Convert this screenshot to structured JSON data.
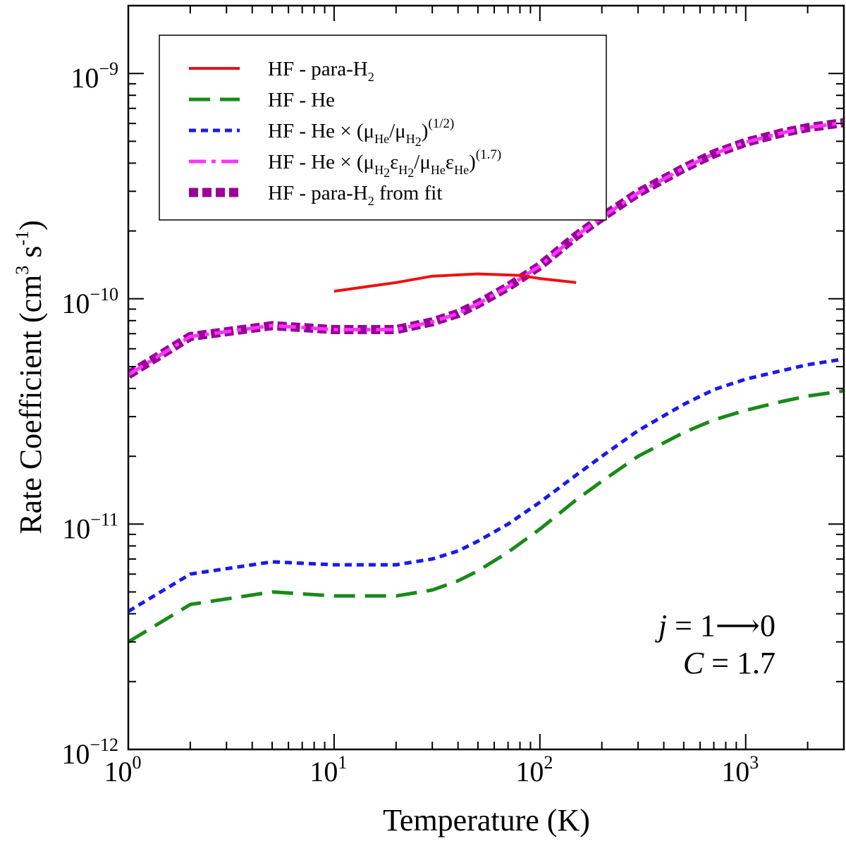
{
  "chart_data": {
    "type": "line",
    "xlabel": "Temperature (K)",
    "ylabel": {
      "main": "Rate Coefficient (cm",
      "sup1": "3",
      "mid": " s",
      "sup2": "-1",
      "end": ")"
    },
    "xscale": "log",
    "yscale": "log",
    "xlim": [
      1,
      3000
    ],
    "ylim": [
      1e-12,
      2e-09
    ],
    "xticks": [
      {
        "value": 1,
        "base": "10",
        "exp": "0"
      },
      {
        "value": 10,
        "base": "10",
        "exp": "1"
      },
      {
        "value": 100,
        "base": "10",
        "exp": "2"
      },
      {
        "value": 1000,
        "base": "10",
        "exp": "3"
      }
    ],
    "yticks": [
      {
        "value": 1e-12,
        "base": "10",
        "exp": "−12"
      },
      {
        "value": 1e-11,
        "base": "10",
        "exp": "−11"
      },
      {
        "value": 1e-10,
        "base": "10",
        "exp": "−10"
      },
      {
        "value": 1e-09,
        "base": "10",
        "exp": "−9"
      }
    ],
    "legend_position": "top-left",
    "series": [
      {
        "id": "para",
        "legend": {
          "segments": [
            {
              "t": "HF - para-H"
            },
            {
              "t": "2",
              "sub": true
            }
          ]
        },
        "color": "#ee1111",
        "dash": "none",
        "width": 4,
        "x": [
          10,
          20,
          30,
          50,
          80,
          100,
          150
        ],
        "y": [
          1.08e-10,
          1.18e-10,
          1.26e-10,
          1.29e-10,
          1.27e-10,
          1.23e-10,
          1.18e-10
        ]
      },
      {
        "id": "he",
        "legend": {
          "segments": [
            {
              "t": "HF - He"
            }
          ]
        },
        "color": "#1a8a1a",
        "dash": "long",
        "width": 5,
        "x": [
          1,
          2,
          5,
          10,
          20,
          30,
          40,
          50,
          70,
          100,
          150,
          200,
          300,
          500,
          700,
          1000,
          1500,
          2000,
          3000
        ],
        "y": [
          3e-12,
          4.4e-12,
          5e-12,
          4.8e-12,
          4.8e-12,
          5.1e-12,
          5.6e-12,
          6.2e-12,
          7.5e-12,
          9.5e-12,
          1.28e-11,
          1.55e-11,
          2e-11,
          2.55e-11,
          2.9e-11,
          3.2e-11,
          3.5e-11,
          3.7e-11,
          3.9e-11
        ]
      },
      {
        "id": "he-mu",
        "legend": {
          "segments": [
            {
              "t": "HF - He × (μ"
            },
            {
              "t": "He",
              "sub": true
            },
            {
              "t": "/μ"
            },
            {
              "t": "H",
              "sub": true
            },
            {
              "t": "2",
              "sub2": true
            },
            {
              "t": ")"
            },
            {
              "t": "(1/2)",
              "sup": true
            }
          ]
        },
        "color": "#1a1aee",
        "dash": "short",
        "width": 5,
        "x": [
          1,
          2,
          5,
          10,
          20,
          30,
          40,
          50,
          70,
          100,
          150,
          200,
          300,
          500,
          700,
          1000,
          1500,
          2000,
          3000
        ],
        "y": [
          4.1e-12,
          6e-12,
          6.8e-12,
          6.6e-12,
          6.6e-12,
          7e-12,
          7.6e-12,
          8.4e-12,
          1e-11,
          1.25e-11,
          1.65e-11,
          2e-11,
          2.6e-11,
          3.4e-11,
          3.95e-11,
          4.4e-11,
          4.8e-11,
          5.1e-11,
          5.4e-11
        ]
      },
      {
        "id": "he-scaled",
        "legend": {
          "segments": [
            {
              "t": "HF - He × (μ"
            },
            {
              "t": "H",
              "sub": true
            },
            {
              "t": "2",
              "sub2": true
            },
            {
              "t": "ε"
            },
            {
              "t": "H",
              "sub": true
            },
            {
              "t": "2",
              "sub2": true
            },
            {
              "t": "/μ"
            },
            {
              "t": "He",
              "sub": true
            },
            {
              "t": "ε"
            },
            {
              "t": "He",
              "sub": true
            },
            {
              "t": ")"
            },
            {
              "t": "(1.7)",
              "sup": true
            }
          ]
        },
        "color": "#ff33ff",
        "dash": "dashdot",
        "width": 5,
        "x": [
          1,
          2,
          5,
          10,
          20,
          30,
          40,
          50,
          70,
          100,
          150,
          200,
          300,
          500,
          700,
          1000,
          1500,
          2000,
          3000
        ],
        "y": [
          4.6e-11,
          6.8e-11,
          7.6e-11,
          7.3e-11,
          7.3e-11,
          7.9e-11,
          8.6e-11,
          9.5e-11,
          1.13e-10,
          1.4e-10,
          1.9e-10,
          2.3e-10,
          2.95e-10,
          3.8e-10,
          4.4e-10,
          4.95e-10,
          5.45e-10,
          5.75e-10,
          6.05e-10
        ]
      },
      {
        "id": "fit",
        "legend": {
          "segments": [
            {
              "t": "HF - para-H"
            },
            {
              "t": "2",
              "sub": true
            },
            {
              "t": " from fit"
            }
          ]
        },
        "color": "#990099",
        "dash": "dot",
        "width": 13,
        "x": [
          1,
          2,
          5,
          10,
          20,
          30,
          40,
          50,
          70,
          100,
          150,
          200,
          300,
          500,
          700,
          1000,
          1500,
          2000,
          3000
        ],
        "y": [
          4.6e-11,
          6.8e-11,
          7.6e-11,
          7.3e-11,
          7.3e-11,
          7.9e-11,
          8.6e-11,
          9.5e-11,
          1.13e-10,
          1.4e-10,
          1.9e-10,
          2.3e-10,
          2.95e-10,
          3.8e-10,
          4.4e-10,
          4.95e-10,
          5.45e-10,
          5.75e-10,
          6.05e-10
        ]
      }
    ],
    "annotations": [
      {
        "id": "transition",
        "var": "j",
        "text": " = 1⟶0"
      },
      {
        "id": "constant",
        "var": "C",
        "text": " = 1.7"
      }
    ]
  }
}
